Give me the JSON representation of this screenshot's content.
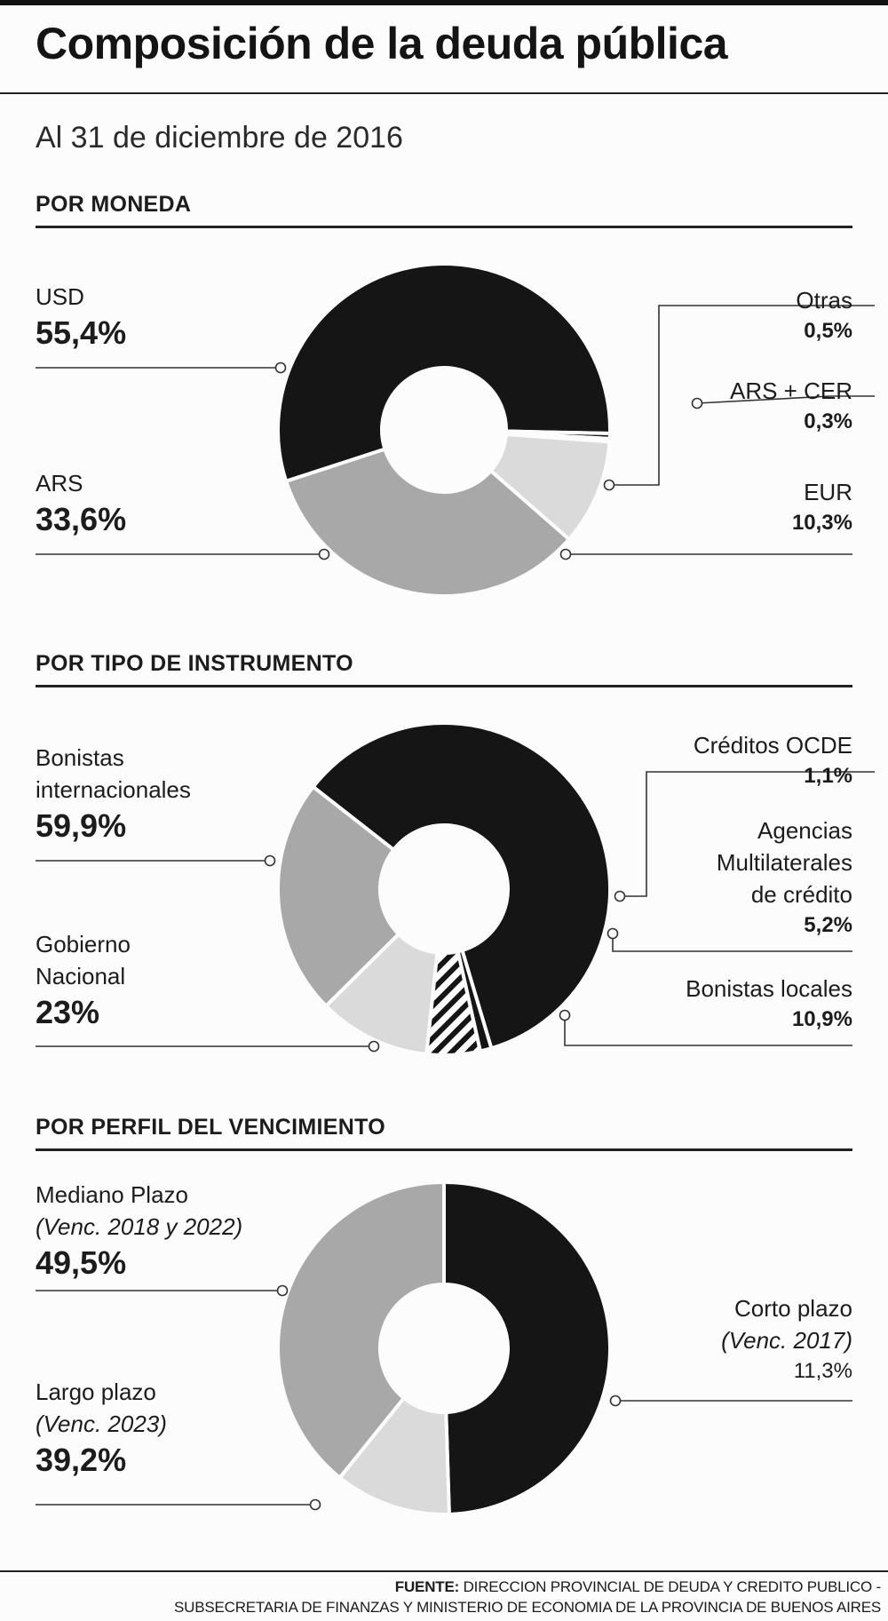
{
  "title": "Composición de la deuda pública",
  "subtitle": "Al 31 de diciembre de 2016",
  "colors": {
    "black": "#151515",
    "gray": "#a8a8a8",
    "light": "#dadada",
    "hatch": "#151515"
  },
  "sections": [
    {
      "heading": "POR MONEDA"
    },
    {
      "heading": "POR TIPO DE INSTRUMENTO"
    },
    {
      "heading": "POR PERFIL DEL VENCIMIENTO"
    }
  ],
  "chart_data": [
    {
      "type": "pie",
      "title": "POR MONEDA",
      "slices": [
        {
          "label": "USD",
          "value": 55.4,
          "value_label": "55,4%",
          "fill": "black"
        },
        {
          "label": "Otras",
          "value": 0.5,
          "value_label": "0,5%",
          "fill": "black"
        },
        {
          "label": "ARS + CER",
          "value": 0.3,
          "value_label": "0,3%",
          "fill": "black"
        },
        {
          "label": "EUR",
          "value": 10.3,
          "value_label": "10,3%",
          "fill": "light"
        },
        {
          "label": "ARS",
          "value": 33.6,
          "value_label": "33,6%",
          "fill": "gray"
        }
      ]
    },
    {
      "type": "pie",
      "title": "POR TIPO DE INSTRUMENTO",
      "slices": [
        {
          "label": "Bonistas internacionales",
          "label_lines": [
            "Bonistas",
            "internacionales"
          ],
          "value": 59.9,
          "value_label": "59,9%",
          "fill": "black"
        },
        {
          "label": "Créditos OCDE",
          "label_lines": [
            "Créditos OCDE"
          ],
          "value": 1.1,
          "value_label": "1,1%",
          "fill": "black"
        },
        {
          "label": "Agencias Multilaterales de crédito",
          "label_lines": [
            "Agencias",
            "Multilaterales",
            "de crédito"
          ],
          "value": 5.2,
          "value_label": "5,2%",
          "fill": "hatch"
        },
        {
          "label": "Bonistas locales",
          "label_lines": [
            "Bonistas locales"
          ],
          "value": 10.9,
          "value_label": "10,9%",
          "fill": "light"
        },
        {
          "label": "Gobierno Nacional",
          "label_lines": [
            "Gobierno",
            "Nacional"
          ],
          "value": 23,
          "value_label": "23%",
          "fill": "gray"
        }
      ]
    },
    {
      "type": "pie",
      "title": "POR PERFIL DEL VENCIMIENTO",
      "slices": [
        {
          "label": "Mediano Plazo",
          "note": "(Venc. 2018 y 2022)",
          "value": 49.5,
          "value_label": "49,5%",
          "fill": "black"
        },
        {
          "label": "Corto plazo",
          "note": "(Venc. 2017)",
          "value": 11.3,
          "value_label": "11,3%",
          "fill": "light"
        },
        {
          "label": "Largo plazo",
          "note": "(Venc. 2023)",
          "value": 39.2,
          "value_label": "39,2%",
          "fill": "gray"
        }
      ]
    }
  ],
  "footer": {
    "lead": "FUENTE:",
    "line1": "DIRECCION PROVINCIAL DE DEUDA Y CREDITO PUBLICO -",
    "line2": "SUBSECRETARIA DE FINANZAS Y MINISTERIO DE ECONOMIA DE LA PROVINCIA DE BUENOS AIRES"
  }
}
